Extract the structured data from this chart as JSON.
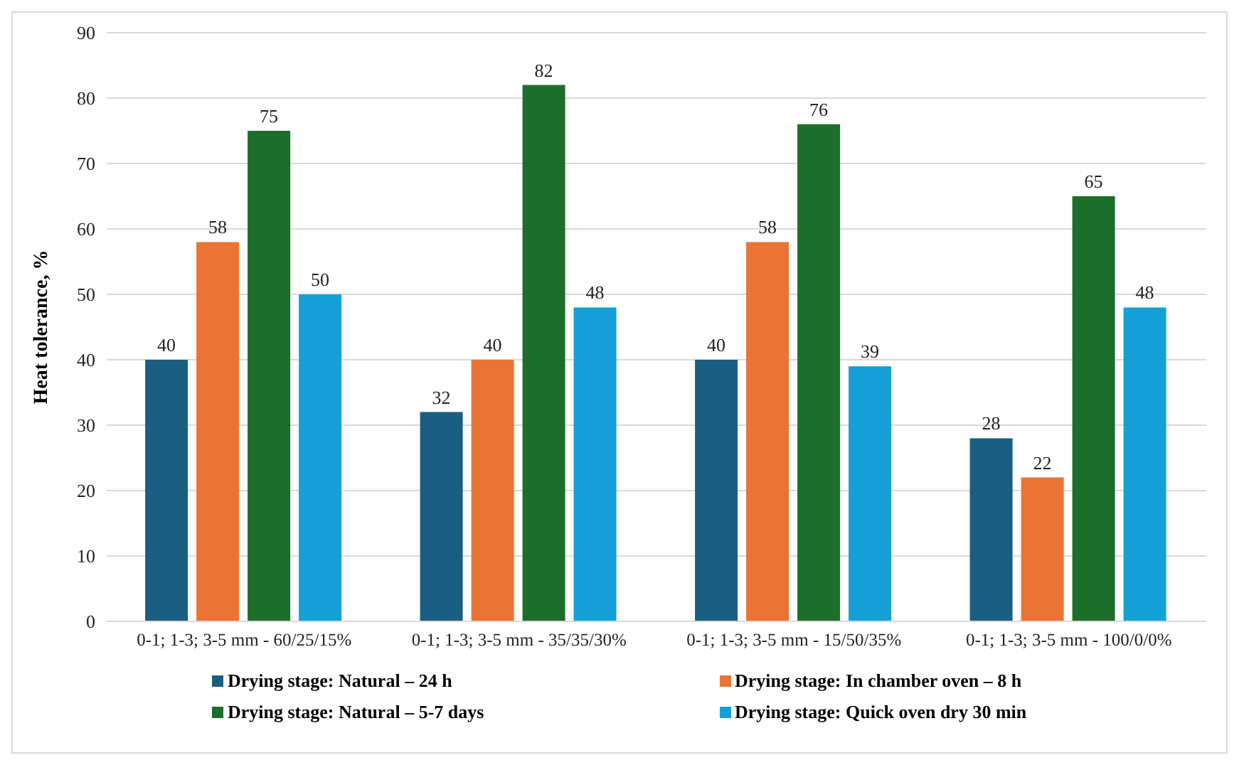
{
  "chart_data": {
    "type": "bar",
    "ylabel": "Heat tolerance, %",
    "categories": [
      "0-1; 1-3; 3-5 mm - 60/25/15%",
      "0-1; 1-3; 3-5 mm - 35/35/30%",
      "0-1; 1-3; 3-5 mm - 15/50/35%",
      "0-1; 1-3; 3-5 mm - 100/0/0%"
    ],
    "series": [
      {
        "name": "Drying stage: Natural – 24 h",
        "color": "#1a5e82",
        "values": [
          40,
          32,
          40,
          28
        ]
      },
      {
        "name": "Drying stage: In chamber oven – 8 h",
        "color": "#ea7434",
        "values": [
          58,
          40,
          58,
          22
        ]
      },
      {
        "name": "Drying stage: Natural – 5-7 days",
        "color": "#1d6e2a",
        "values": [
          75,
          82,
          76,
          65
        ]
      },
      {
        "name": "Drying stage: Quick oven dry 30 min",
        "color": "#16a0d8",
        "values": [
          50,
          48,
          39,
          48
        ]
      }
    ],
    "ylim": [
      0,
      90
    ],
    "yticks": [
      0,
      10,
      20,
      30,
      40,
      50,
      60,
      70,
      80,
      90
    ],
    "grid": "y",
    "legend": "bottom",
    "data_labels": true
  }
}
